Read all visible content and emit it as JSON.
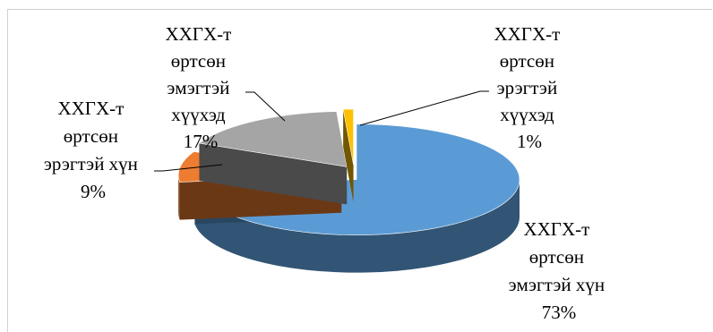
{
  "chart_data": {
    "type": "pie",
    "title": "",
    "style": "3d-exploded",
    "slices": [
      {
        "lines": [
          "ХХГХ-т",
          "өртсөн",
          "эмэгтэй хүн"
        ],
        "percent_label": "73%",
        "value": 73,
        "color": "#5b9bd5"
      },
      {
        "lines": [
          "ХХГХ-т",
          "өртсөн",
          "эрэгтэй хүн"
        ],
        "percent_label": "9%",
        "value": 9,
        "color": "#ed7d31"
      },
      {
        "lines": [
          "ХХГХ-т",
          "өртсөн",
          "эмэгтэй",
          "хүүхэд"
        ],
        "percent_label": "17%",
        "value": 17,
        "color": "#a5a5a5"
      },
      {
        "lines": [
          "ХХГХ-т",
          "өртсөн",
          "эрэгтэй",
          "хүүхэд"
        ],
        "percent_label": "1%",
        "value": 1,
        "color": "#ffc000"
      }
    ]
  }
}
